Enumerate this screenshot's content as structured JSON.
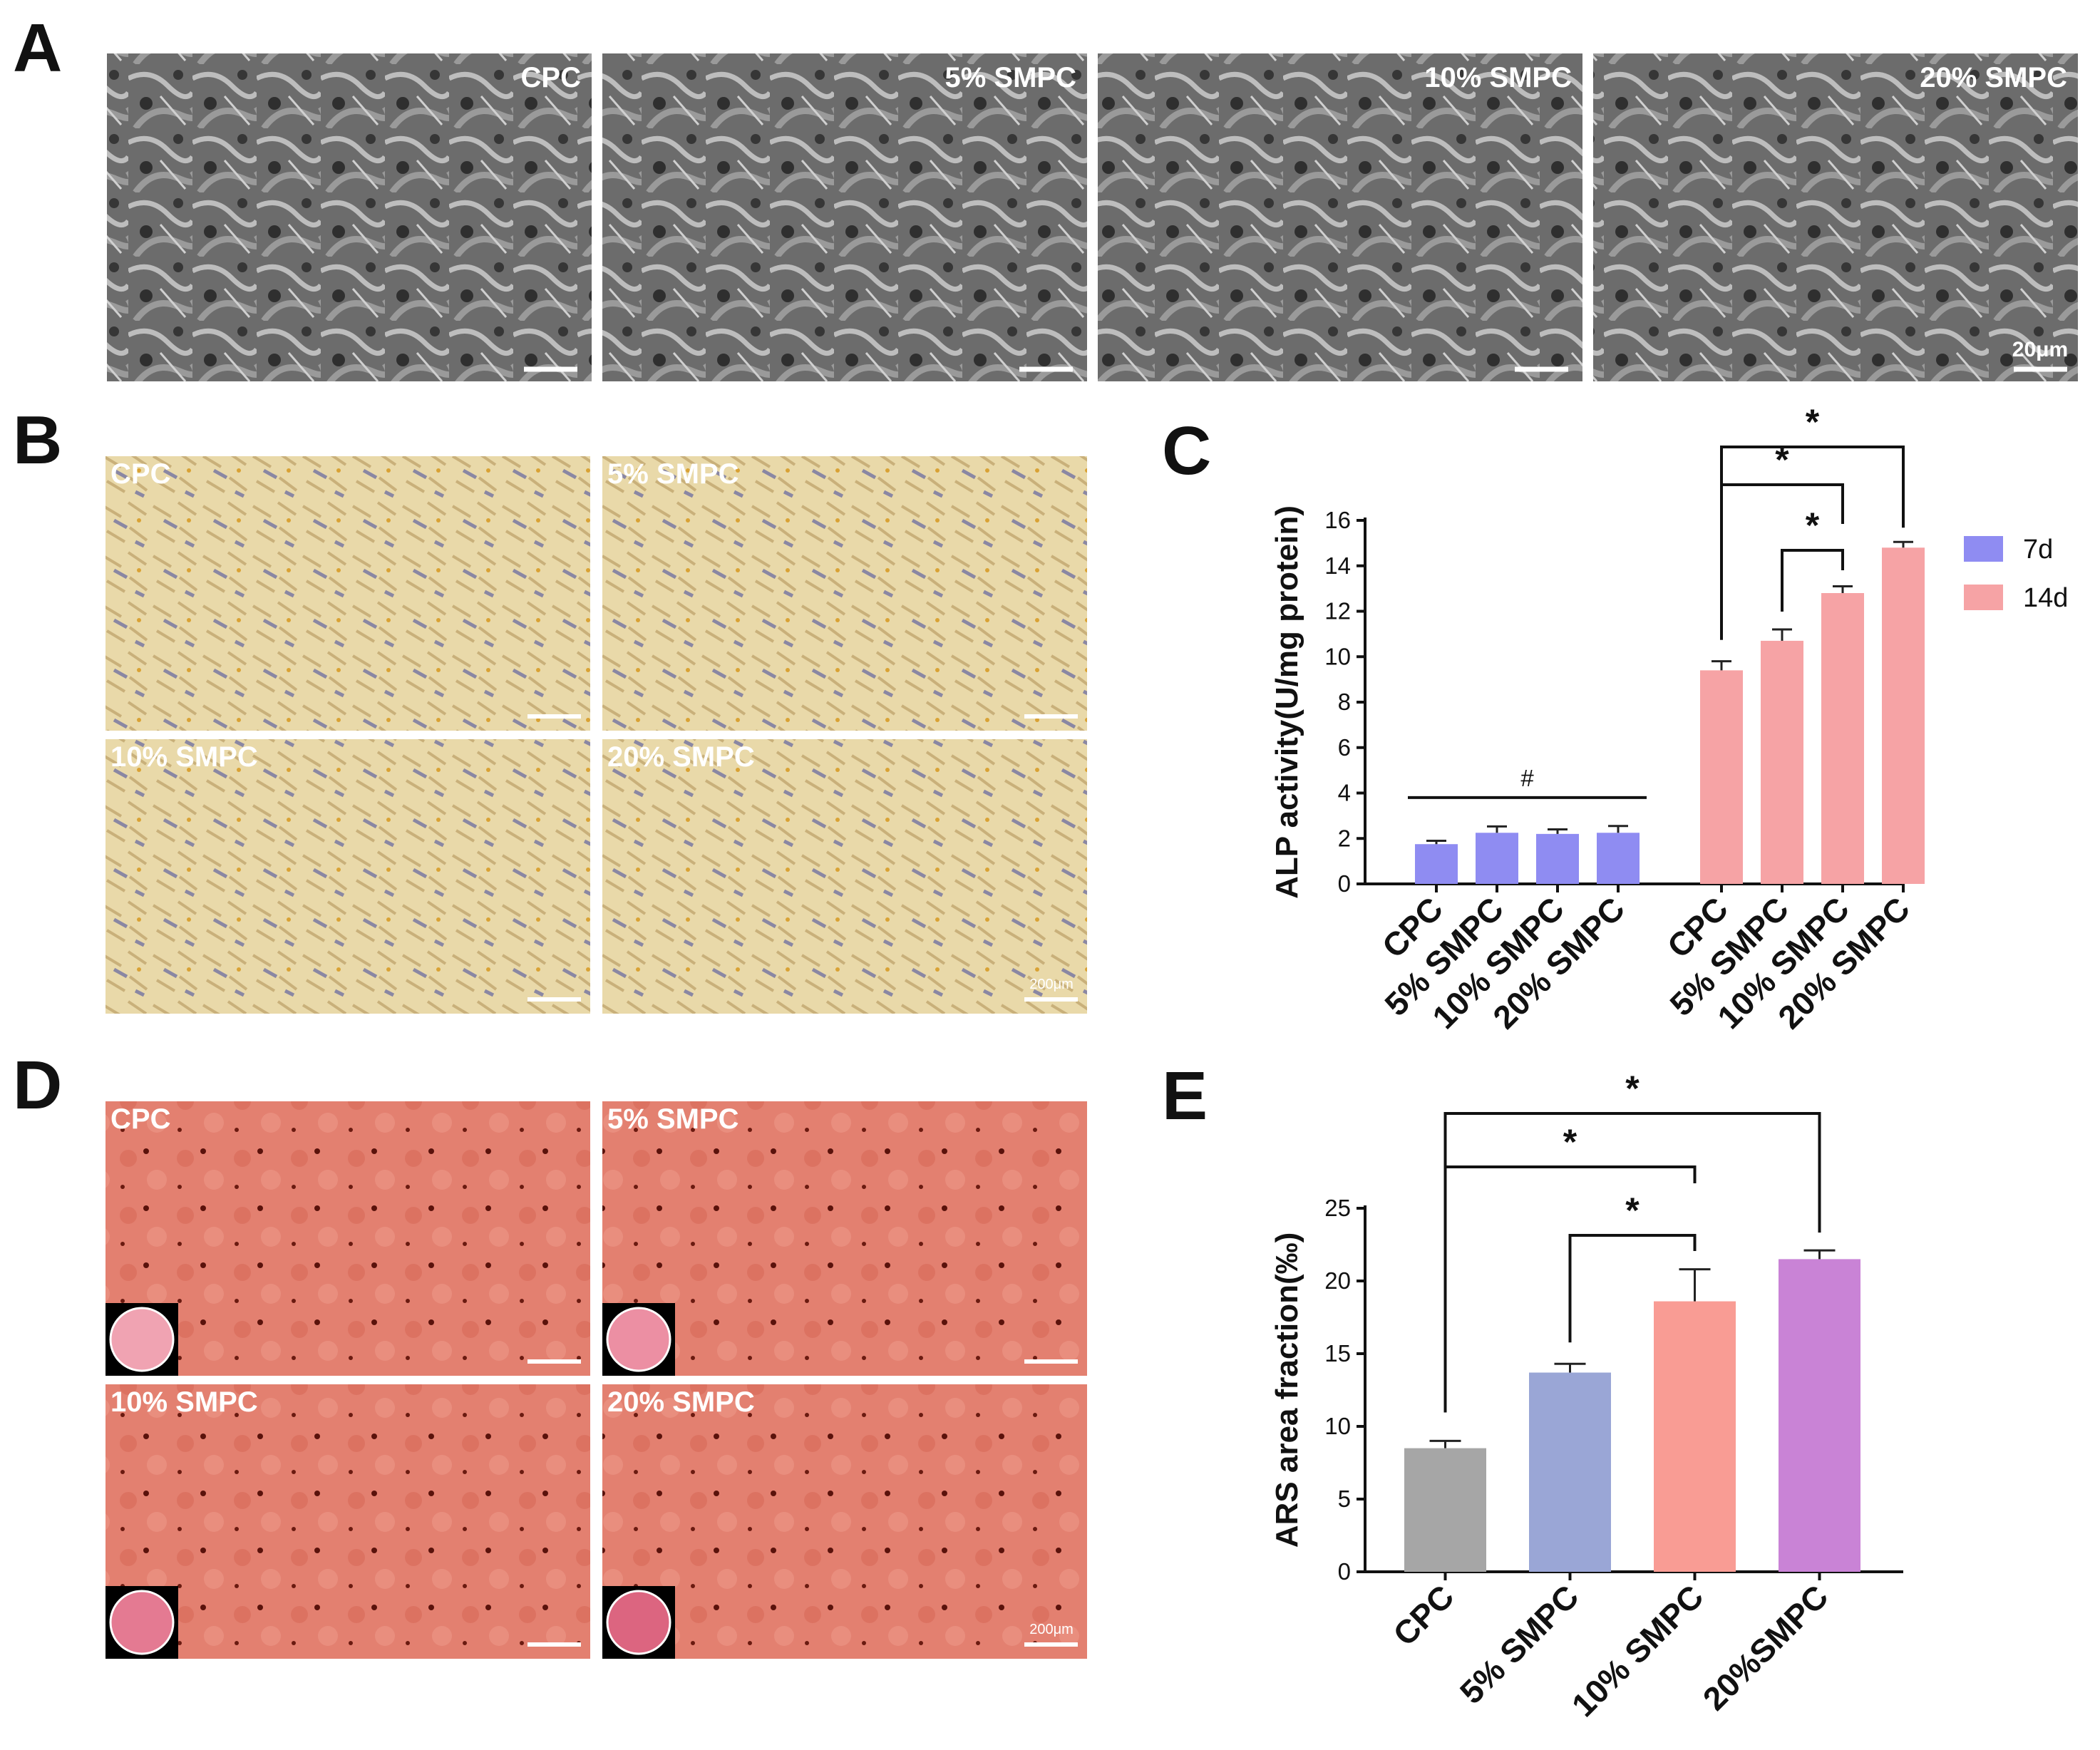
{
  "panel_letters": [
    "A",
    "B",
    "C",
    "D",
    "E"
  ],
  "sem_row": {
    "labels": [
      "CPC",
      "5% SMPC",
      "10% SMPC",
      "20% SMPC"
    ],
    "scale_bar": "20μm"
  },
  "alp_stain_grid": {
    "labels": [
      "CPC",
      "5% SMPC",
      "10% SMPC",
      "20% SMPC"
    ],
    "scale_bar": "200μm"
  },
  "ars_stain_grid": {
    "labels": [
      "CPC",
      "5% SMPC",
      "10% SMPC",
      "20% SMPC"
    ],
    "scale_bar": "200μm"
  },
  "colors": {
    "d7": "#8f8cf2",
    "d14": "#f6a3a5",
    "cpc_grey": "#a6a6a6",
    "smpc5_blue": "#9aa6d6",
    "smpc10_salmon": "#f99c94",
    "smpc20_purple": "#c983d6",
    "alp_bg": "#ead9a8",
    "ars_bg": "#e07a66",
    "sem_bg": "#6e6e6e"
  },
  "chart_data": [
    {
      "type": "bar",
      "ylabel": "ALP activity(U/mg protein)",
      "ylim": [
        0,
        16
      ],
      "yticks": [
        "0",
        "2",
        "4",
        "6",
        "8",
        "10",
        "12",
        "14",
        "16"
      ],
      "categories": [
        "CPC",
        "5% SMPC",
        "10% SMPC",
        "20% SMPC"
      ],
      "legend_position": "top-right",
      "series": [
        {
          "name": "7d",
          "values": [
            1.75,
            2.25,
            2.2,
            2.25
          ],
          "errors": [
            0.15,
            0.28,
            0.2,
            0.3
          ]
        },
        {
          "name": "14d",
          "values": [
            9.4,
            10.7,
            12.8,
            14.8
          ],
          "errors": [
            0.4,
            0.5,
            0.3,
            0.25
          ]
        }
      ],
      "annotations": [
        {
          "type": "line",
          "text": "#",
          "series": "7d",
          "from": 0,
          "to": 3
        },
        {
          "type": "bracket",
          "text": "*",
          "series": "14d",
          "from": 0,
          "to": 3
        },
        {
          "type": "bracket",
          "text": "*",
          "series": "14d",
          "from": 0,
          "to": 2
        },
        {
          "type": "bracket",
          "text": "*",
          "series": "14d",
          "from": 1,
          "to": 2
        }
      ]
    },
    {
      "type": "bar",
      "ylabel": "ARS area fraction(‰)",
      "ylim": [
        0,
        25
      ],
      "yticks": [
        "0",
        "5",
        "10",
        "15",
        "20",
        "25"
      ],
      "categories": [
        "CPC",
        "5% SMPC",
        "10% SMPC",
        "20%SMPC"
      ],
      "values": [
        8.5,
        13.7,
        18.6,
        21.5
      ],
      "errors": [
        0.5,
        0.6,
        2.2,
        0.6
      ],
      "annotations": [
        {
          "type": "bracket",
          "text": "*",
          "from": 0,
          "to": 3
        },
        {
          "type": "bracket",
          "text": "*",
          "from": 0,
          "to": 2
        },
        {
          "type": "bracket",
          "text": "*",
          "from": 1,
          "to": 2
        }
      ]
    }
  ]
}
